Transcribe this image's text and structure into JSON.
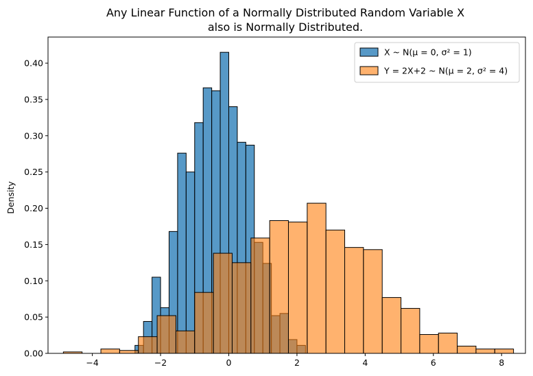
{
  "chart_data": {
    "type": "histogram",
    "title_lines": [
      "Any Linear Function of a Normally Distributed Random Variable X",
      "also is Normally Distributed."
    ],
    "xlabel": "",
    "ylabel": "Density",
    "xlim": [
      -5.3,
      8.7
    ],
    "ylim": [
      0,
      0.436
    ],
    "xticks": [
      -4,
      -2,
      0,
      2,
      4,
      6,
      8
    ],
    "yticks": [
      0.0,
      0.05,
      0.1,
      0.15,
      0.2,
      0.25,
      0.3,
      0.35,
      0.4
    ],
    "ytick_labels": [
      "0.00",
      "0.05",
      "0.10",
      "0.15",
      "0.20",
      "0.25",
      "0.30",
      "0.35",
      "0.40"
    ],
    "grid": false,
    "legend": {
      "position": "top-right"
    },
    "series": [
      {
        "name": "X ~ N(μ = 0, σ² = 1)",
        "color": "#1f77b4",
        "bin_start": -2.75,
        "bin_width": 0.25,
        "values": [
          0.011,
          0.044,
          0.105,
          0.063,
          0.168,
          0.276,
          0.25,
          0.318,
          0.366,
          0.362,
          0.415,
          0.34,
          0.291,
          0.287,
          0.153,
          0.124,
          0.052,
          0.055,
          0.019,
          0.011
        ]
      },
      {
        "name": "Y = 2X+2 ~ N(μ = 2, σ² = 4)",
        "color": "#ff7f0e",
        "bins": [
          {
            "start": -4.85,
            "width": 0.55,
            "value": 0.002
          },
          {
            "start": -3.75,
            "width": 0.55,
            "value": 0.006
          },
          {
            "start": -3.2,
            "width": 0.55,
            "value": 0.004
          },
          {
            "start": -2.65,
            "width": 0.55,
            "value": 0.023
          },
          {
            "start": -2.1,
            "width": 0.55,
            "value": 0.052
          },
          {
            "start": -1.55,
            "width": 0.55,
            "value": 0.031
          },
          {
            "start": -1.0,
            "width": 0.55,
            "value": 0.084
          },
          {
            "start": -0.45,
            "width": 0.55,
            "value": 0.138
          },
          {
            "start": 0.1,
            "width": 0.55,
            "value": 0.125
          },
          {
            "start": 0.65,
            "width": 0.55,
            "value": 0.159
          },
          {
            "start": 1.2,
            "width": 0.55,
            "value": 0.183
          },
          {
            "start": 1.75,
            "width": 0.55,
            "value": 0.181
          },
          {
            "start": 2.3,
            "width": 0.55,
            "value": 0.207
          },
          {
            "start": 2.85,
            "width": 0.55,
            "value": 0.17
          },
          {
            "start": 3.4,
            "width": 0.55,
            "value": 0.146
          },
          {
            "start": 3.95,
            "width": 0.55,
            "value": 0.143
          },
          {
            "start": 4.5,
            "width": 0.55,
            "value": 0.077
          },
          {
            "start": 5.05,
            "width": 0.55,
            "value": 0.062
          },
          {
            "start": 5.6,
            "width": 0.55,
            "value": 0.026
          },
          {
            "start": 6.15,
            "width": 0.55,
            "value": 0.028
          },
          {
            "start": 6.7,
            "width": 0.55,
            "value": 0.01
          },
          {
            "start": 7.25,
            "width": 0.55,
            "value": 0.006
          },
          {
            "start": 7.8,
            "width": 0.55,
            "value": 0.006
          }
        ]
      }
    ]
  }
}
